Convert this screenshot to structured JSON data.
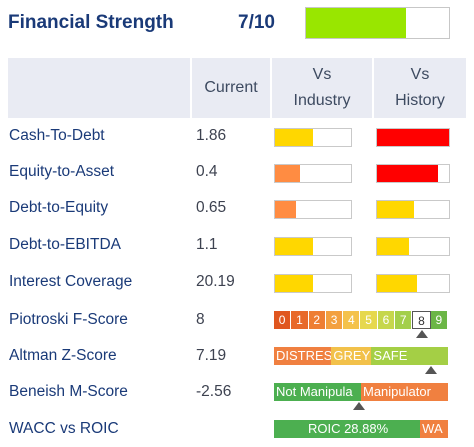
{
  "header": {
    "title": "Financial Strength",
    "score": "7/10",
    "score_fraction": 0.7,
    "score_color": "#99e600"
  },
  "columns": {
    "current": "Current",
    "vs_industry": [
      "Vs",
      "Industry"
    ],
    "vs_history": [
      "Vs",
      "History"
    ]
  },
  "rows": [
    {
      "label": "Cash-To-Debt",
      "value": "1.86",
      "industry": {
        "fraction": 0.5,
        "color": "#ffd700"
      },
      "history": {
        "fraction": 1.0,
        "color": "#ff0000"
      }
    },
    {
      "label": "Equity-to-Asset",
      "value": "0.4",
      "industry": {
        "fraction": 0.33,
        "color": "#ff8c42"
      },
      "history": {
        "fraction": 0.85,
        "color": "#ff0000"
      }
    },
    {
      "label": "Debt-to-Equity",
      "value": "0.65",
      "industry": {
        "fraction": 0.28,
        "color": "#ff8c42"
      },
      "history": {
        "fraction": 0.52,
        "color": "#ffd700"
      }
    },
    {
      "label": "Debt-to-EBITDA",
      "value": "1.1",
      "industry": {
        "fraction": 0.5,
        "color": "#ffd700"
      },
      "history": {
        "fraction": 0.45,
        "color": "#ffd700"
      }
    },
    {
      "label": "Interest Coverage",
      "value": "20.19",
      "industry": {
        "fraction": 0.5,
        "color": "#ffd700"
      },
      "history": {
        "fraction": 0.55,
        "color": "#ffd700"
      }
    }
  ],
  "piotroski": {
    "label": "Piotroski F-Score",
    "value": "8",
    "cells": [
      "0",
      "1",
      "2",
      "3",
      "4",
      "5",
      "6",
      "7",
      "8",
      "9"
    ],
    "colors": [
      "#e0561f",
      "#e8692a",
      "#ee7e33",
      "#f3a03f",
      "#f4c24b",
      "#e6d84e",
      "#c6d74d",
      "#a3cf4a",
      "#ffffff",
      "#6bb646"
    ],
    "selected": 8
  },
  "altman": {
    "label": "Altman Z-Score",
    "value": "7.19",
    "segments": [
      {
        "text": "DISTRESS",
        "color": "#f08040",
        "fraction": 0.33
      },
      {
        "text": "GREY",
        "color": "#f2c14a",
        "fraction": 0.23
      },
      {
        "text": "SAFE",
        "color": "#a4cf45",
        "fraction": 0.44
      }
    ],
    "marker": 0.9
  },
  "beneish": {
    "label": "Beneish M-Score",
    "value": "-2.56",
    "segments": [
      {
        "text": "Not Manipula",
        "color": "#4caf50",
        "fraction": 0.5
      },
      {
        "text": "Manipulator",
        "color": "#f08040",
        "fraction": 0.5
      }
    ],
    "marker": 0.49
  },
  "wacc": {
    "label": "WACC vs ROIC",
    "segments": [
      {
        "text": "ROIC 28.88%",
        "color": "#4caf50",
        "fraction": 0.84
      },
      {
        "text": "WA",
        "color": "#f08040",
        "fraction": 0.16
      }
    ]
  }
}
